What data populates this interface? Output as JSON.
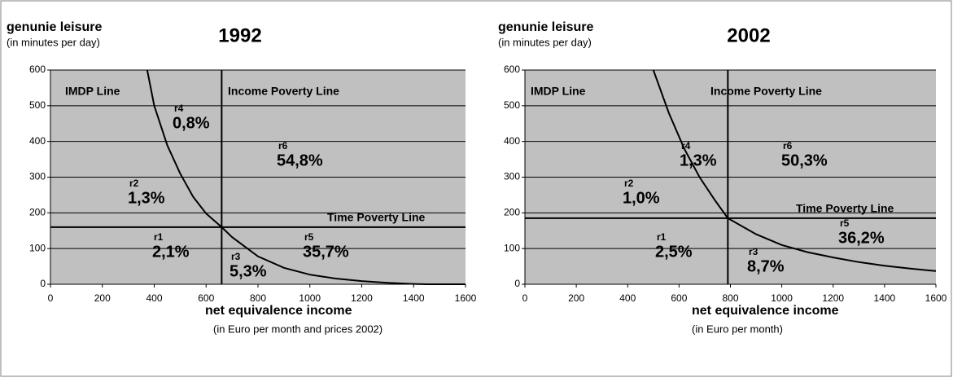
{
  "chart_data": [
    {
      "type": "line",
      "title": "1992",
      "y_label": "genunie leisure",
      "y_sublabel": "(in minutes per day)",
      "x_label": "net equivalence income",
      "x_sublabel": "(in Euro per month and prices 2002)",
      "x": [
        373,
        400,
        450,
        500,
        550,
        600,
        660,
        700,
        800,
        900,
        1000,
        1100,
        1200,
        1300,
        1400,
        1450,
        1600
      ],
      "series": [
        {
          "name": "IMDP Line",
          "color": "#000000",
          "values": [
            600,
            500,
            390,
            310,
            245,
            198,
            160,
            132,
            78,
            46,
            27,
            16,
            9,
            4,
            1,
            0,
            0
          ]
        }
      ],
      "vlines": [
        {
          "name": "Income Poverty Line",
          "value": 660
        }
      ],
      "hlines": [
        {
          "name": "Time Poverty Line",
          "value": 160
        }
      ],
      "regions": [
        {
          "name": "r1",
          "share": "2,1%"
        },
        {
          "name": "r2",
          "share": "1,3%"
        },
        {
          "name": "r3",
          "share": "5,3%"
        },
        {
          "name": "r4",
          "share": "0,8%"
        },
        {
          "name": "r5",
          "share": "35,7%"
        },
        {
          "name": "r6",
          "share": "54,8%"
        }
      ],
      "xlim": [
        0,
        1600
      ],
      "ylim": [
        0,
        600
      ],
      "xticks": [
        0,
        200,
        400,
        600,
        800,
        1000,
        1200,
        1400,
        1600
      ],
      "yticks": [
        0,
        100,
        200,
        300,
        400,
        500,
        600
      ],
      "grid": true,
      "background": "#c0c0c0"
    },
    {
      "type": "line",
      "title": "2002",
      "y_label": "genunie leisure",
      "y_sublabel": "(in minutes per day)",
      "x_label": "net equivalence income",
      "x_sublabel": "(in Euro per month)",
      "x": [
        500,
        560,
        620,
        680,
        740,
        790,
        900,
        1000,
        1100,
        1200,
        1300,
        1400,
        1500,
        1600
      ],
      "series": [
        {
          "name": "IMDP Line",
          "color": "#000000",
          "values": [
            600,
            480,
            380,
            300,
            235,
            185,
            140,
            110,
            90,
            75,
            62,
            52,
            44,
            37
          ]
        }
      ],
      "vlines": [
        {
          "name": "Income Poverty Line",
          "value": 790
        }
      ],
      "hlines": [
        {
          "name": "Time Poverty Line",
          "value": 185
        }
      ],
      "regions": [
        {
          "name": "r1",
          "share": "2,5%"
        },
        {
          "name": "r2",
          "share": "1,0%"
        },
        {
          "name": "r3",
          "share": "8,7%"
        },
        {
          "name": "r4",
          "share": "1,3%"
        },
        {
          "name": "r5",
          "share": "36,2%"
        },
        {
          "name": "r6",
          "share": "50,3%"
        }
      ],
      "xlim": [
        0,
        1600
      ],
      "ylim": [
        0,
        600
      ],
      "xticks": [
        0,
        200,
        400,
        600,
        800,
        1000,
        1200,
        1400,
        1600
      ],
      "yticks": [
        0,
        100,
        200,
        300,
        400,
        500,
        600
      ],
      "grid": true,
      "background": "#c0c0c0"
    }
  ]
}
